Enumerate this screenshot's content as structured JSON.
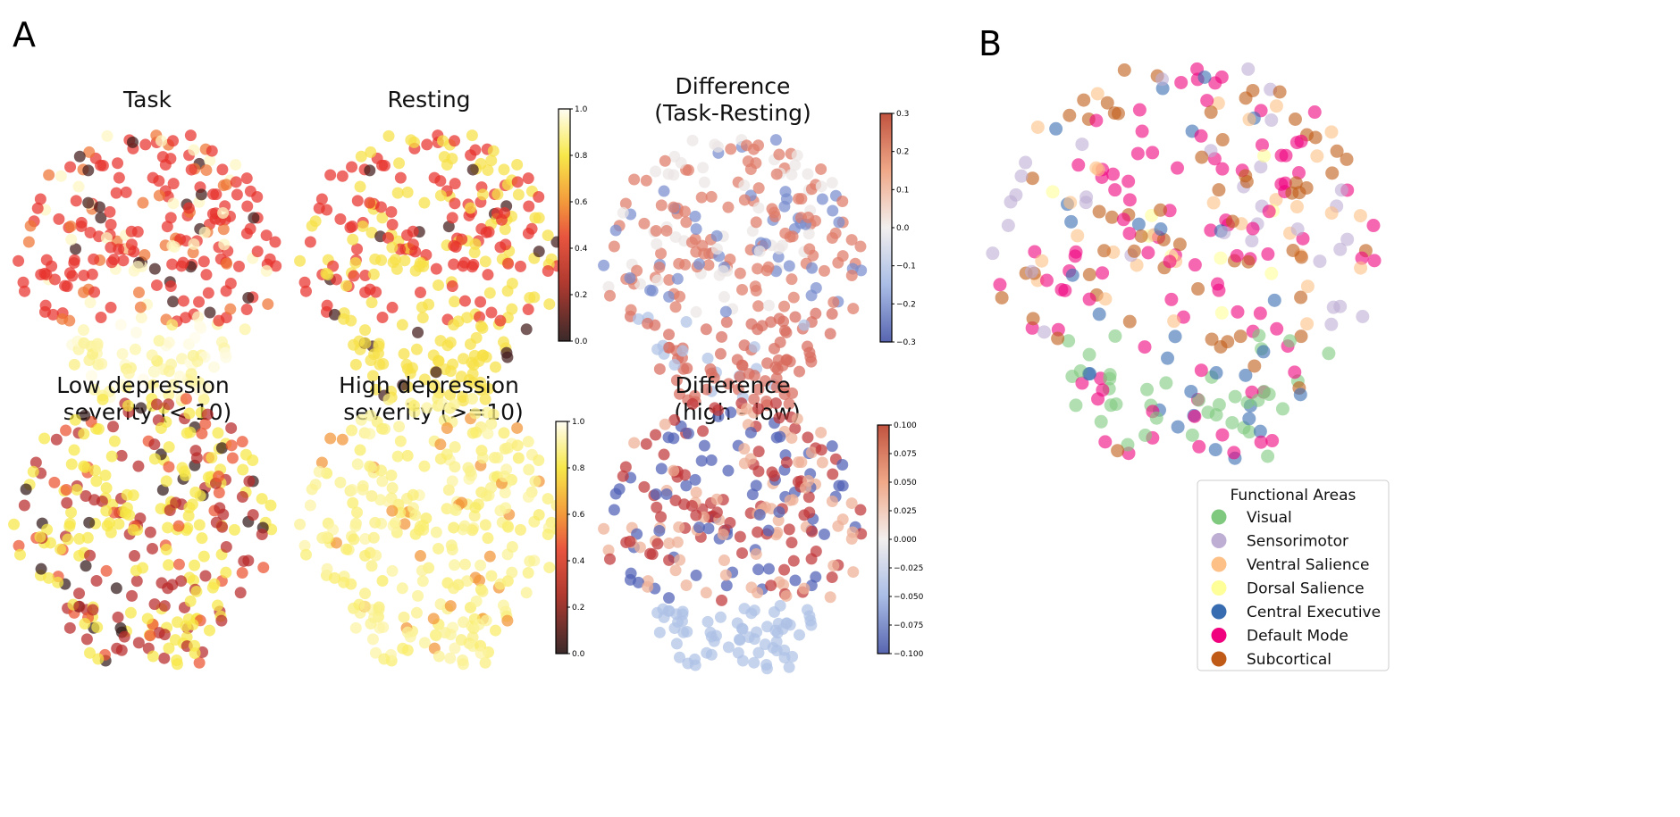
{
  "panel_labels": {
    "a": "A",
    "b": "B"
  },
  "chart_data": {
    "type": "scatter",
    "node_count": 300,
    "panels": [
      {
        "id": "task",
        "title": [
          "Task"
        ],
        "cmap": "hot",
        "vmin": 0,
        "vmax": 1,
        "dist": "task"
      },
      {
        "id": "resting",
        "title": [
          "Resting"
        ],
        "cmap": "hot",
        "vmin": 0,
        "vmax": 1,
        "dist": "resting"
      },
      {
        "id": "diff1",
        "title": [
          "Difference",
          "(Task-Resting)"
        ],
        "cmap": "coolwarm",
        "vmin": -0.3,
        "vmax": 0.3,
        "dist": "diff1"
      },
      {
        "id": "low",
        "title": [
          "Low depression",
          "severity (< 10)"
        ],
        "cmap": "hot",
        "vmin": 0,
        "vmax": 1,
        "dist": "low"
      },
      {
        "id": "high",
        "title": [
          "High depression",
          "severity (>=10)"
        ],
        "cmap": "hot",
        "vmin": 0,
        "vmax": 1,
        "dist": "high"
      },
      {
        "id": "diff2",
        "title": [
          "Difference",
          "(high - low)"
        ],
        "cmap": "coolwarm",
        "vmin": -0.1,
        "vmax": 0.1,
        "dist": "diff2"
      }
    ],
    "colorbars": [
      {
        "id": "cb-top-hot",
        "ticks": [
          "1.0",
          "0.8",
          "0.6",
          "0.4",
          "0.2",
          "0.0"
        ],
        "cmap": "hot"
      },
      {
        "id": "cb-top-diff",
        "ticks": [
          "0.3",
          "0.2",
          "0.1",
          "0.0",
          "−0.1",
          "−0.2",
          "−0.3"
        ],
        "cmap": "coolwarm"
      },
      {
        "id": "cb-bottom-hot",
        "ticks": [
          "1.0",
          "0.8",
          "0.6",
          "0.4",
          "0.2",
          "0.0"
        ],
        "cmap": "hot"
      },
      {
        "id": "cb-bottom-diff",
        "ticks": [
          "0.100",
          "0.075",
          "0.050",
          "0.025",
          "0.000",
          "−0.025",
          "−0.050",
          "−0.075",
          "−0.100"
        ],
        "cmap": "coolwarm"
      }
    ],
    "legend": {
      "title": "Functional Areas",
      "placement": "bottom-right",
      "entries": [
        {
          "label": "Visual",
          "color": "#7fc97f"
        },
        {
          "label": "Sensorimotor",
          "color": "#beaed4"
        },
        {
          "label": "Ventral Salience",
          "color": "#fdc086"
        },
        {
          "label": "Dorsal Salience",
          "color": "#ffff99"
        },
        {
          "label": "Central Executive",
          "color": "#386cb0"
        },
        {
          "label": "Default Mode",
          "color": "#f0027f"
        },
        {
          "label": "Subcortical",
          "color": "#bf5b17"
        }
      ]
    }
  }
}
